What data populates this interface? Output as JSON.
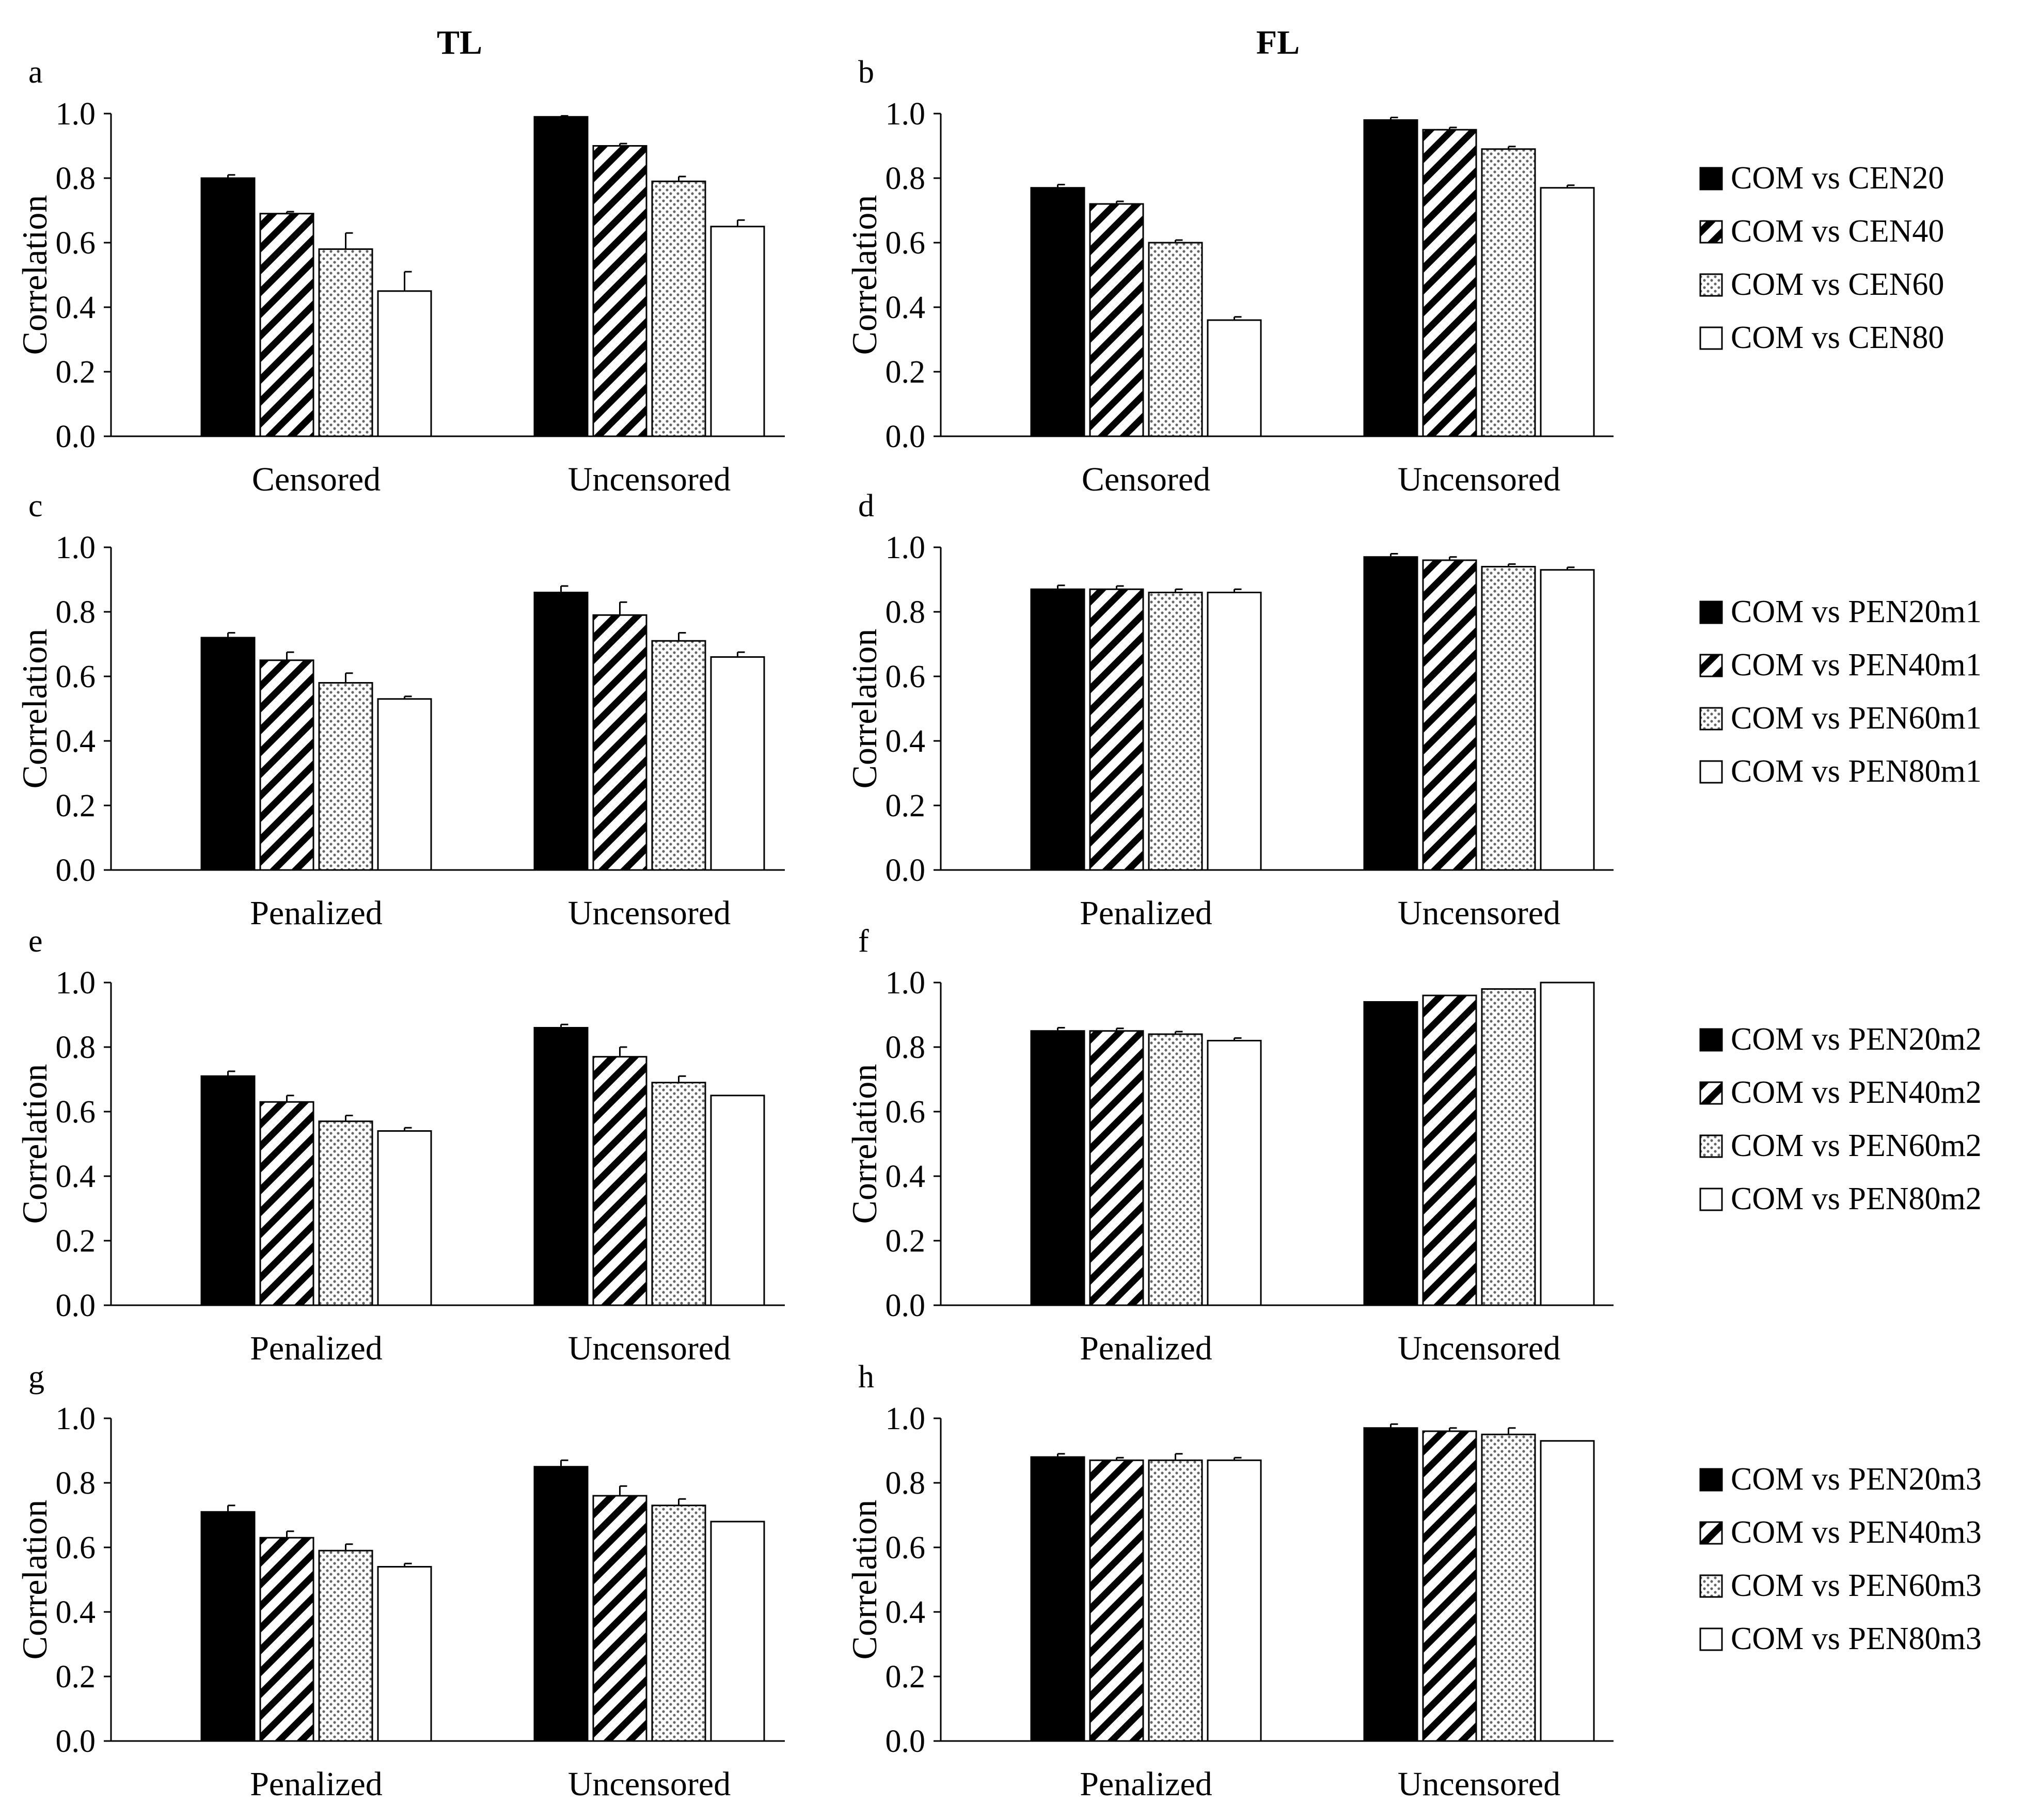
{
  "figure": {
    "column_titles": [
      "TL",
      "FL"
    ]
  },
  "fills": {
    "black": "#000000",
    "white": "#ffffff",
    "dots": "#b0b0b0"
  },
  "legends": [
    {
      "entries": [
        {
          "label": "COM vs CEN20",
          "pattern": "black-icon"
        },
        {
          "label": "COM vs CEN40",
          "pattern": "diagonal-stripe-icon"
        },
        {
          "label": "COM vs CEN60",
          "pattern": "dotted-icon"
        },
        {
          "label": "COM vs CEN80",
          "pattern": "white-icon"
        }
      ]
    },
    {
      "entries": [
        {
          "label": "COM vs PEN20m1",
          "pattern": "black-icon"
        },
        {
          "label": "COM vs PEN40m1",
          "pattern": "diagonal-stripe-icon"
        },
        {
          "label": "COM vs PEN60m1",
          "pattern": "dotted-icon"
        },
        {
          "label": "COM vs PEN80m1",
          "pattern": "white-icon"
        }
      ]
    },
    {
      "entries": [
        {
          "label": "COM vs PEN20m2",
          "pattern": "black-icon"
        },
        {
          "label": "COM vs PEN40m2",
          "pattern": "diagonal-stripe-icon"
        },
        {
          "label": "COM vs PEN60m2",
          "pattern": "dotted-icon"
        },
        {
          "label": "COM vs PEN80m2",
          "pattern": "white-icon"
        }
      ]
    },
    {
      "entries": [
        {
          "label": "COM vs PEN20m3",
          "pattern": "black-icon"
        },
        {
          "label": "COM vs PEN40m3",
          "pattern": "diagonal-stripe-icon"
        },
        {
          "label": "COM vs PEN60m3",
          "pattern": "dotted-icon"
        },
        {
          "label": "COM vs PEN80m3",
          "pattern": "white-icon"
        }
      ]
    }
  ],
  "chart_data": [
    {
      "panel": "a",
      "type": "bar",
      "column_title": "TL",
      "ylabel": "Correlation",
      "ylim": [
        0,
        1.0
      ],
      "yticks": [
        "0.0",
        "0.2",
        "0.4",
        "0.6",
        "0.8",
        "1.0"
      ],
      "categories": [
        "Censored",
        "Uncensored"
      ],
      "series": [
        {
          "name": "COM vs CEN20",
          "values": [
            0.8,
            0.99
          ],
          "errors": [
            0.01,
            0.003
          ]
        },
        {
          "name": "COM vs CEN40",
          "values": [
            0.69,
            0.9
          ],
          "errors": [
            0.006,
            0.007
          ]
        },
        {
          "name": "COM vs CEN60",
          "values": [
            0.58,
            0.79
          ],
          "errors": [
            0.05,
            0.015
          ]
        },
        {
          "name": "COM vs CEN80",
          "values": [
            0.45,
            0.65
          ],
          "errors": [
            0.06,
            0.02
          ]
        }
      ]
    },
    {
      "panel": "b",
      "type": "bar",
      "column_title": "FL",
      "ylabel": "Correlation",
      "ylim": [
        0,
        1.0
      ],
      "yticks": [
        "0.0",
        "0.2",
        "0.4",
        "0.6",
        "0.8",
        "1.0"
      ],
      "categories": [
        "Censored",
        "Uncensored"
      ],
      "series": [
        {
          "name": "COM vs CEN20",
          "values": [
            0.77,
            0.98
          ],
          "errors": [
            0.01,
            0.008
          ]
        },
        {
          "name": "COM vs CEN40",
          "values": [
            0.72,
            0.95
          ],
          "errors": [
            0.008,
            0.007
          ]
        },
        {
          "name": "COM vs CEN60",
          "values": [
            0.6,
            0.89
          ],
          "errors": [
            0.008,
            0.008
          ]
        },
        {
          "name": "COM vs CEN80",
          "values": [
            0.36,
            0.77
          ],
          "errors": [
            0.01,
            0.008
          ]
        }
      ]
    },
    {
      "panel": "c",
      "type": "bar",
      "column_title": "TL",
      "ylabel": "Correlation",
      "ylim": [
        0,
        1.0
      ],
      "yticks": [
        "0.0",
        "0.2",
        "0.4",
        "0.6",
        "0.8",
        "1.0"
      ],
      "categories": [
        "Penalized",
        "Uncensored"
      ],
      "series": [
        {
          "name": "COM vs PEN20m1",
          "values": [
            0.72,
            0.86
          ],
          "errors": [
            0.015,
            0.02
          ]
        },
        {
          "name": "COM vs PEN40m1",
          "values": [
            0.65,
            0.79
          ],
          "errors": [
            0.025,
            0.04
          ]
        },
        {
          "name": "COM vs PEN60m1",
          "values": [
            0.58,
            0.71
          ],
          "errors": [
            0.03,
            0.025
          ]
        },
        {
          "name": "COM vs PEN80m1",
          "values": [
            0.53,
            0.66
          ],
          "errors": [
            0.008,
            0.015
          ]
        }
      ]
    },
    {
      "panel": "d",
      "type": "bar",
      "column_title": "FL",
      "ylabel": "Correlation",
      "ylim": [
        0,
        1.0
      ],
      "yticks": [
        "0.0",
        "0.2",
        "0.4",
        "0.6",
        "0.8",
        "1.0"
      ],
      "categories": [
        "Penalized",
        "Uncensored"
      ],
      "series": [
        {
          "name": "COM vs PEN20m1",
          "values": [
            0.87,
            0.97
          ],
          "errors": [
            0.012,
            0.01
          ]
        },
        {
          "name": "COM vs PEN40m1",
          "values": [
            0.87,
            0.96
          ],
          "errors": [
            0.01,
            0.01
          ]
        },
        {
          "name": "COM vs PEN60m1",
          "values": [
            0.86,
            0.94
          ],
          "errors": [
            0.01,
            0.008
          ]
        },
        {
          "name": "COM vs PEN80m1",
          "values": [
            0.86,
            0.93
          ],
          "errors": [
            0.01,
            0.008
          ]
        }
      ]
    },
    {
      "panel": "e",
      "type": "bar",
      "column_title": "TL",
      "ylabel": "Correlation",
      "ylim": [
        0,
        1.0
      ],
      "yticks": [
        "0.0",
        "0.2",
        "0.4",
        "0.6",
        "0.8",
        "1.0"
      ],
      "categories": [
        "Penalized",
        "Uncensored"
      ],
      "series": [
        {
          "name": "COM vs PEN20m2",
          "values": [
            0.71,
            0.86
          ],
          "errors": [
            0.015,
            0.01
          ]
        },
        {
          "name": "COM vs PEN40m2",
          "values": [
            0.63,
            0.77
          ],
          "errors": [
            0.02,
            0.03
          ]
        },
        {
          "name": "COM vs PEN60m2",
          "values": [
            0.57,
            0.69
          ],
          "errors": [
            0.018,
            0.02
          ]
        },
        {
          "name": "COM vs PEN80m2",
          "values": [
            0.54,
            0.65
          ],
          "errors": [
            0.01,
            0.0
          ]
        }
      ]
    },
    {
      "panel": "f",
      "type": "bar",
      "column_title": "FL",
      "ylabel": "Correlation",
      "ylim": [
        0,
        1.0
      ],
      "yticks": [
        "0.0",
        "0.2",
        "0.4",
        "0.6",
        "0.8",
        "1.0"
      ],
      "categories": [
        "Penalized",
        "Uncensored"
      ],
      "series": [
        {
          "name": "COM vs PEN20m2",
          "values": [
            0.85,
            0.94
          ],
          "errors": [
            0.01,
            0.0
          ]
        },
        {
          "name": "COM vs PEN40m2",
          "values": [
            0.85,
            0.96
          ],
          "errors": [
            0.008,
            0.0
          ]
        },
        {
          "name": "COM vs PEN60m2",
          "values": [
            0.84,
            0.98
          ],
          "errors": [
            0.008,
            0.0
          ]
        },
        {
          "name": "COM vs PEN80m2",
          "values": [
            0.82,
            1.0
          ],
          "errors": [
            0.008,
            0.0
          ]
        }
      ]
    },
    {
      "panel": "g",
      "type": "bar",
      "column_title": "TL",
      "ylabel": "Correlation",
      "ylim": [
        0,
        1.0
      ],
      "yticks": [
        "0.0",
        "0.2",
        "0.4",
        "0.6",
        "0.8",
        "1.0"
      ],
      "categories": [
        "Penalized",
        "Uncensored"
      ],
      "series": [
        {
          "name": "COM vs PEN20m3",
          "values": [
            0.71,
            0.85
          ],
          "errors": [
            0.02,
            0.02
          ]
        },
        {
          "name": "COM vs PEN40m3",
          "values": [
            0.63,
            0.76
          ],
          "errors": [
            0.02,
            0.03
          ]
        },
        {
          "name": "COM vs PEN60m3",
          "values": [
            0.59,
            0.73
          ],
          "errors": [
            0.02,
            0.02
          ]
        },
        {
          "name": "COM vs PEN80m3",
          "values": [
            0.54,
            0.68
          ],
          "errors": [
            0.01,
            0.0
          ]
        }
      ]
    },
    {
      "panel": "h",
      "type": "bar",
      "column_title": "FL",
      "ylabel": "Correlation",
      "ylim": [
        0,
        1.0
      ],
      "yticks": [
        "0.0",
        "0.2",
        "0.4",
        "0.6",
        "0.8",
        "1.0"
      ],
      "categories": [
        "Penalized",
        "Uncensored"
      ],
      "series": [
        {
          "name": "COM vs PEN20m3",
          "values": [
            0.88,
            0.97
          ],
          "errors": [
            0.01,
            0.012
          ]
        },
        {
          "name": "COM vs PEN40m3",
          "values": [
            0.87,
            0.96
          ],
          "errors": [
            0.008,
            0.01
          ]
        },
        {
          "name": "COM vs PEN60m3",
          "values": [
            0.87,
            0.95
          ],
          "errors": [
            0.02,
            0.02
          ]
        },
        {
          "name": "COM vs PEN80m3",
          "values": [
            0.87,
            0.93
          ],
          "errors": [
            0.008,
            0.0
          ]
        }
      ]
    }
  ]
}
